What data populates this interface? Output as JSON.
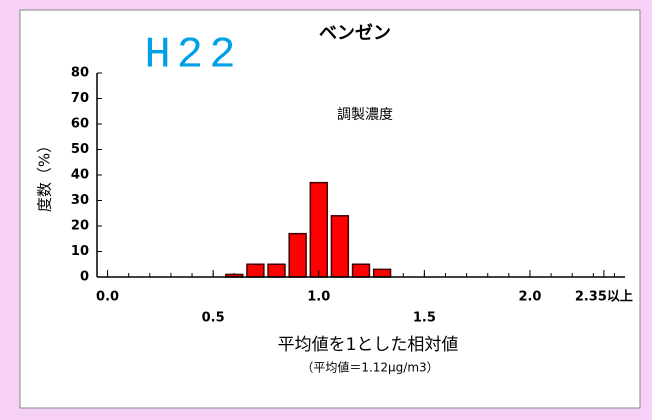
{
  "chart_data": {
    "type": "bar",
    "title": "ベンゼン",
    "badge": "H22",
    "annotation": "調製濃度",
    "x_label": "平均値を1とした相対値",
    "x_sublabel": "（平均値＝1.12μg/m3）",
    "y_label": "度数（%）",
    "x": [
      0.0,
      0.1,
      0.2,
      0.3,
      0.4,
      0.5,
      0.6,
      0.7,
      0.8,
      0.9,
      1.0,
      1.1,
      1.2,
      1.3,
      1.4,
      1.5,
      1.6,
      1.7,
      1.8,
      1.9,
      2.0,
      2.1,
      2.2,
      2.3,
      2.4
    ],
    "values": [
      0,
      0,
      0,
      0,
      0,
      0,
      1,
      5,
      5,
      17,
      37,
      24,
      5,
      3,
      0,
      0,
      0,
      0,
      0,
      0,
      0,
      0,
      0,
      0,
      0
    ],
    "color": "#ff0000",
    "xlim": [
      -0.05,
      2.45
    ],
    "xticks": [
      {
        "value": 0,
        "label": "0.0"
      },
      0.5,
      {
        "value": 1,
        "label": "1.0"
      },
      1.5,
      {
        "value": 2,
        "label": "2.0"
      },
      {
        "value": 2.35,
        "label": "2.35以上"
      }
    ],
    "ylim": [
      0,
      80
    ],
    "yticks": [
      0,
      10,
      20,
      30,
      40,
      50,
      60,
      70,
      80
    ],
    "grid": false
  }
}
